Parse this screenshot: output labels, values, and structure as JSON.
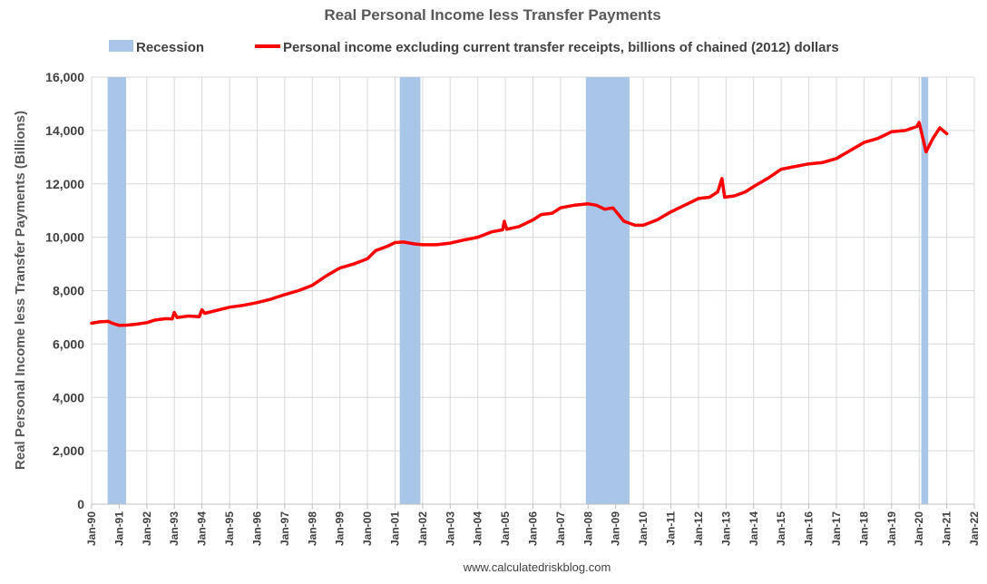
{
  "chart_data": {
    "type": "line",
    "title": "Real Personal Income less Transfer Payments",
    "ylabel": "Real Personal Income less Transfer Payments (Billions)",
    "xlabel": "",
    "ylim": [
      0,
      16000
    ],
    "yticks": [
      0,
      2000,
      4000,
      6000,
      8000,
      10000,
      12000,
      14000,
      16000
    ],
    "ytick_labels": [
      "0",
      "2,000",
      "4,000",
      "6,000",
      "8,000",
      "10,000",
      "12,000",
      "14,000",
      "16,000"
    ],
    "xlim": [
      1990.0,
      2022.0
    ],
    "xticks": [
      1990,
      1991,
      1992,
      1993,
      1994,
      1995,
      1996,
      1997,
      1998,
      1999,
      2000,
      2001,
      2002,
      2003,
      2004,
      2005,
      2006,
      2007,
      2008,
      2009,
      2010,
      2011,
      2012,
      2013,
      2014,
      2015,
      2016,
      2017,
      2018,
      2019,
      2020,
      2021,
      2022
    ],
    "xtick_labels": [
      "Jan-90",
      "Jan-91",
      "Jan-92",
      "Jan-93",
      "Jan-94",
      "Jan-95",
      "Jan-96",
      "Jan-97",
      "Jan-98",
      "Jan-99",
      "Jan-00",
      "Jan-01",
      "Jan-02",
      "Jan-03",
      "Jan-04",
      "Jan-05",
      "Jan-06",
      "Jan-07",
      "Jan-08",
      "Jan-09",
      "Jan-10",
      "Jan-11",
      "Jan-12",
      "Jan-13",
      "Jan-14",
      "Jan-15",
      "Jan-16",
      "Jan-17",
      "Jan-18",
      "Jan-19",
      "Jan-20",
      "Jan-21",
      "Jan-22"
    ],
    "grid": true,
    "legend_position": "top",
    "legend": [
      {
        "label": "Recession",
        "color": "#a9c6e8",
        "kind": "box"
      },
      {
        "label": "Personal income excluding current transfer receipts, billions of chained (2012) dollars",
        "color": "#ff0000",
        "kind": "line"
      }
    ],
    "recessions": [
      {
        "start": 1990.58,
        "end": 1991.25
      },
      {
        "start": 2001.17,
        "end": 2001.92
      },
      {
        "start": 2007.92,
        "end": 2009.5
      },
      {
        "start": 2020.08,
        "end": 2020.33
      }
    ],
    "series": [
      {
        "name": "Personal income excluding current transfer receipts, billions of chained (2012) dollars",
        "color": "#ff0000",
        "points": [
          [
            1990.0,
            6780
          ],
          [
            1990.3,
            6830
          ],
          [
            1990.6,
            6850
          ],
          [
            1990.8,
            6760
          ],
          [
            1991.0,
            6700
          ],
          [
            1991.3,
            6710
          ],
          [
            1991.6,
            6740
          ],
          [
            1992.0,
            6800
          ],
          [
            1992.3,
            6900
          ],
          [
            1992.7,
            6950
          ],
          [
            1992.92,
            6940
          ],
          [
            1993.0,
            7180
          ],
          [
            1993.1,
            6990
          ],
          [
            1993.5,
            7050
          ],
          [
            1993.9,
            7020
          ],
          [
            1994.0,
            7280
          ],
          [
            1994.1,
            7150
          ],
          [
            1994.5,
            7250
          ],
          [
            1995.0,
            7380
          ],
          [
            1995.5,
            7450
          ],
          [
            1996.0,
            7550
          ],
          [
            1996.5,
            7680
          ],
          [
            1997.0,
            7850
          ],
          [
            1997.5,
            8000
          ],
          [
            1998.0,
            8200
          ],
          [
            1998.5,
            8550
          ],
          [
            1999.0,
            8850
          ],
          [
            1999.5,
            9000
          ],
          [
            2000.0,
            9200
          ],
          [
            2000.3,
            9500
          ],
          [
            2000.7,
            9650
          ],
          [
            2001.0,
            9800
          ],
          [
            2001.3,
            9820
          ],
          [
            2001.7,
            9750
          ],
          [
            2002.0,
            9720
          ],
          [
            2002.5,
            9720
          ],
          [
            2003.0,
            9780
          ],
          [
            2003.5,
            9900
          ],
          [
            2004.0,
            10000
          ],
          [
            2004.5,
            10200
          ],
          [
            2004.9,
            10280
          ],
          [
            2004.96,
            10600
          ],
          [
            2005.05,
            10300
          ],
          [
            2005.5,
            10400
          ],
          [
            2006.0,
            10650
          ],
          [
            2006.3,
            10850
          ],
          [
            2006.7,
            10900
          ],
          [
            2007.0,
            11100
          ],
          [
            2007.5,
            11200
          ],
          [
            2008.0,
            11250
          ],
          [
            2008.3,
            11200
          ],
          [
            2008.6,
            11050
          ],
          [
            2008.9,
            11100
          ],
          [
            2009.3,
            10600
          ],
          [
            2009.7,
            10450
          ],
          [
            2010.0,
            10450
          ],
          [
            2010.5,
            10650
          ],
          [
            2011.0,
            10950
          ],
          [
            2011.5,
            11200
          ],
          [
            2012.0,
            11450
          ],
          [
            2012.4,
            11500
          ],
          [
            2012.7,
            11700
          ],
          [
            2012.85,
            12200
          ],
          [
            2012.95,
            11500
          ],
          [
            2013.3,
            11550
          ],
          [
            2013.7,
            11700
          ],
          [
            2014.0,
            11900
          ],
          [
            2014.5,
            12200
          ],
          [
            2015.0,
            12550
          ],
          [
            2015.5,
            12650
          ],
          [
            2016.0,
            12750
          ],
          [
            2016.5,
            12800
          ],
          [
            2017.0,
            12950
          ],
          [
            2017.5,
            13250
          ],
          [
            2018.0,
            13550
          ],
          [
            2018.5,
            13700
          ],
          [
            2019.0,
            13950
          ],
          [
            2019.5,
            14000
          ],
          [
            2019.92,
            14150
          ],
          [
            2020.0,
            14300
          ],
          [
            2020.25,
            13200
          ],
          [
            2020.5,
            13700
          ],
          [
            2020.75,
            14100
          ],
          [
            2021.0,
            13880
          ]
        ]
      }
    ]
  },
  "footer": "www.calculatedriskblog.com",
  "colors": {
    "grid": "#d9d9d9",
    "axis": "#bfbfbf",
    "recession": "#a9c6e8",
    "line": "#ff0000"
  }
}
